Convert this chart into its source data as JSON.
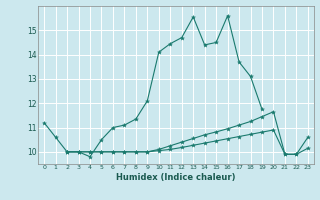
{
  "title": "",
  "xlabel": "Humidex (Indice chaleur)",
  "bg_color": "#cce8ee",
  "line_color": "#1a7a6e",
  "grid_color": "#ffffff",
  "xlim": [
    -0.5,
    23.5
  ],
  "ylim": [
    9.5,
    16.0
  ],
  "xticks": [
    0,
    1,
    2,
    3,
    4,
    5,
    6,
    7,
    8,
    9,
    10,
    11,
    12,
    13,
    14,
    15,
    16,
    17,
    18,
    19,
    20,
    21,
    22,
    23
  ],
  "yticks": [
    10,
    11,
    12,
    13,
    14,
    15
  ],
  "lines": [
    {
      "x": [
        0,
        1,
        2,
        3,
        4,
        5,
        6,
        7,
        8,
        9,
        10,
        11,
        12,
        13,
        14,
        15,
        16,
        17,
        18,
        19
      ],
      "y": [
        11.2,
        10.6,
        10.0,
        10.0,
        9.8,
        10.5,
        11.0,
        11.1,
        11.35,
        12.1,
        14.1,
        14.45,
        14.7,
        15.55,
        14.4,
        14.5,
        15.6,
        13.7,
        13.1,
        11.75
      ]
    },
    {
      "x": [
        2,
        3,
        4,
        5,
        6,
        7,
        8,
        9,
        10,
        11,
        12,
        13,
        14,
        15,
        16,
        17,
        18,
        19,
        20,
        21,
        22,
        23
      ],
      "y": [
        10.0,
        10.0,
        10.0,
        10.0,
        10.0,
        10.0,
        10.0,
        10.0,
        10.1,
        10.25,
        10.4,
        10.55,
        10.7,
        10.82,
        10.95,
        11.1,
        11.25,
        11.45,
        11.65,
        9.9,
        9.9,
        10.6
      ]
    },
    {
      "x": [
        2,
        3,
        4,
        5,
        6,
        7,
        8,
        9,
        10,
        11,
        12,
        13,
        14,
        15,
        16,
        17,
        18,
        19,
        20,
        21,
        22,
        23
      ],
      "y": [
        10.0,
        10.0,
        10.0,
        10.0,
        10.0,
        10.0,
        10.0,
        10.0,
        10.05,
        10.1,
        10.18,
        10.27,
        10.36,
        10.45,
        10.54,
        10.63,
        10.72,
        10.81,
        10.9,
        9.9,
        9.9,
        10.15
      ]
    }
  ]
}
